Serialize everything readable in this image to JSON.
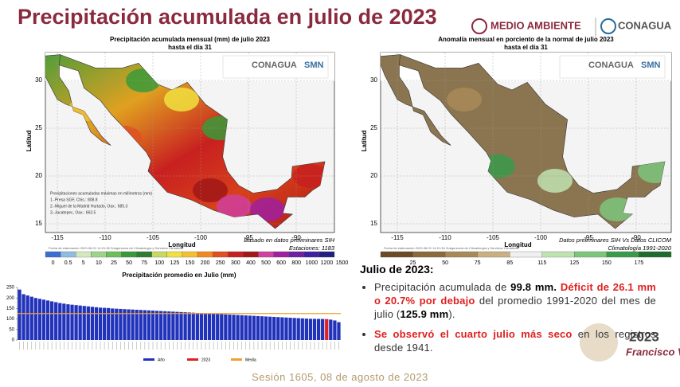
{
  "header": {
    "title": "Precipitación acumulada en julio de 2023",
    "logos": [
      "MEDIO AMBIENTE",
      "CONAGUA"
    ]
  },
  "maps": [
    {
      "title": "Precipitación acumulada mensual (mm) de julio 2023",
      "subtitle": "hasta el día 31",
      "logos": [
        "CONAGUA",
        "SMN"
      ],
      "xlabel": "Longitud",
      "ylabel": "Latitud",
      "xticks": [
        -115,
        -110,
        -105,
        -100,
        -95,
        -90
      ],
      "yticks": [
        30,
        25,
        20,
        15
      ],
      "notes": [
        "Precipitaciones acumuladas máximas en milímetros (mm)",
        "1.-Presa SGF, Chis.: 808.8",
        "2.-Miguel de la Madrid Hurtado, Oax.: 685.3",
        "3.-Jacatepec, Oax.: 663.5"
      ],
      "side_notes": [
        "Basado en datos preliminares SIH",
        "Estaciones: 1183"
      ],
      "credit": "Fecha de elaboración 2023-08-01 14:01:36 Subgerencia de Climatología y Servicios Climáticos",
      "colorbar": {
        "labels": [
          0,
          0.5,
          5,
          10,
          25,
          50,
          75,
          100,
          125,
          150,
          200,
          250,
          300,
          400,
          500,
          600,
          800,
          1000,
          1200,
          1500
        ],
        "colors": [
          "#3a6fd0",
          "#8fbde0",
          "#d4e8c0",
          "#9ed48a",
          "#6cbf5a",
          "#3a9a3a",
          "#2e7d32",
          "#c8d860",
          "#f0e040",
          "#f5c030",
          "#f08a20",
          "#e05020",
          "#c82020",
          "#a01818",
          "#d040a0",
          "#a020a0",
          "#7020a0",
          "#4020a0",
          "#202080"
        ]
      },
      "land_fill": "url(#g1)"
    },
    {
      "title": "Anomalía mensual en porciento de la normal de julio 2023",
      "subtitle": "hasta el día 31",
      "logos": [
        "CONAGUA",
        "SMN"
      ],
      "xlabel": "Longitud",
      "ylabel": "Latitud",
      "xticks": [
        -115,
        -110,
        -105,
        -100,
        -95,
        -90
      ],
      "yticks": [
        30,
        25,
        20,
        15
      ],
      "notes": [],
      "side_notes": [
        "Datos preliminares SIH Vs Datos CLICOM",
        "Climatología 1991-2020"
      ],
      "credit": "Fecha de elaboración 2023-08-01 14:01:36 Subgerencia de Climatología y Servicios Climáticos",
      "colorbar": {
        "labels": [
          25,
          50,
          75,
          85,
          115,
          125,
          150,
          175
        ],
        "colors": [
          "#6b4c24",
          "#8b6a3a",
          "#a88a58",
          "#c8b080",
          "#f0f0f0",
          "#bfe3b0",
          "#7cc67c",
          "#3a9a4a",
          "#1f6b2f"
        ]
      },
      "land_fill": "#8b7550"
    }
  ],
  "chart_data": {
    "type": "bar",
    "title": "Precipitación promedio en Julio (mm)",
    "ylim": [
      0,
      250
    ],
    "yticks": [
      0,
      50,
      100,
      150,
      200,
      250
    ],
    "series": [
      {
        "name": "Año",
        "color": "#2233bb",
        "values": [
          240,
          218,
          212,
          206,
          200,
          196,
          192,
          188,
          184,
          180,
          176,
          173,
          170,
          168,
          166,
          164,
          162,
          160,
          158,
          156,
          154,
          153,
          152,
          150,
          149,
          148,
          147,
          146,
          145,
          144,
          143,
          142,
          141,
          140,
          139,
          138,
          137,
          136,
          135,
          134,
          133,
          132,
          131,
          130,
          129,
          128,
          127,
          126,
          125,
          124,
          123,
          122,
          121,
          120,
          119,
          118,
          117,
          116,
          115,
          114,
          113,
          112,
          111,
          110,
          109,
          108,
          107,
          106,
          105,
          104,
          103,
          102,
          101,
          100.8,
          100.5,
          100.2,
          null,
          97,
          93,
          85
        ]
      },
      {
        "name": "2023",
        "color": "#e02020",
        "values": [
          null,
          null,
          null,
          null,
          null,
          null,
          null,
          null,
          null,
          null,
          null,
          null,
          null,
          null,
          null,
          null,
          null,
          null,
          null,
          null,
          null,
          null,
          null,
          null,
          null,
          null,
          null,
          null,
          null,
          null,
          null,
          null,
          null,
          null,
          null,
          null,
          null,
          null,
          null,
          null,
          null,
          null,
          null,
          null,
          null,
          null,
          null,
          null,
          null,
          null,
          null,
          null,
          null,
          null,
          null,
          null,
          null,
          null,
          null,
          null,
          null,
          null,
          null,
          null,
          null,
          null,
          null,
          null,
          null,
          null,
          null,
          null,
          null,
          null,
          null,
          null,
          99.8,
          null,
          null,
          null
        ]
      }
    ],
    "reference_line": {
      "name": "Media",
      "value": 125.9,
      "color": "#f0a030"
    }
  },
  "panel": {
    "heading": "Julio de 2023:",
    "bullets": [
      [
        "Precipitación acumulada de ",
        "99.8 mm.",
        "Déficit de 26.1 mm o 20.7% por debajo",
        " del promedio 1991-2020 del mes de julio (",
        "125.9 mm",
        ")."
      ],
      [
        "Se observó el cuarto julio más seco",
        " en los registros desde 1941."
      ]
    ]
  },
  "footer": {
    "session": "Sesión 1605, 08 de agosto de 2023",
    "logo": [
      "2023",
      "Francisco VILLA"
    ]
  }
}
